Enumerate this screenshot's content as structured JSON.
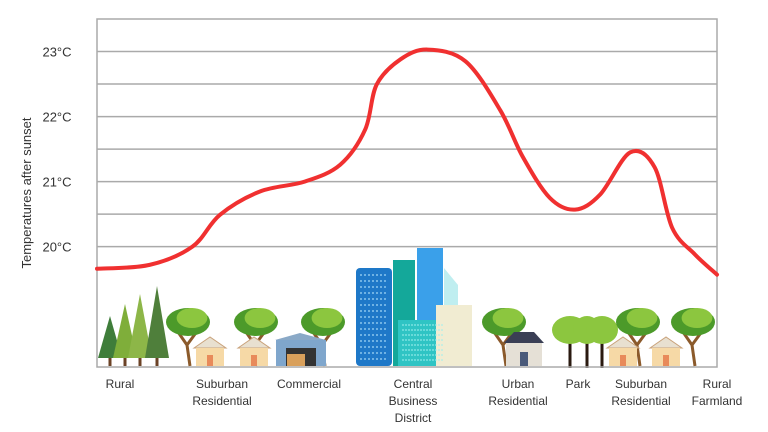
{
  "chart_data": {
    "type": "line",
    "title": "",
    "xlabel": "",
    "ylabel": "Temperatures after sunset",
    "ylim": [
      18.15,
      23.5
    ],
    "yticks": [
      {
        "value": 20,
        "label": "20°C"
      },
      {
        "value": 21,
        "label": "21°C"
      },
      {
        "value": 22,
        "label": "22°C"
      },
      {
        "value": 23,
        "label": "23°C"
      }
    ],
    "gridlines": [
      20,
      20.5,
      21,
      21.5,
      22,
      22.5,
      23
    ],
    "grid": true,
    "categories": [
      [
        "Rural"
      ],
      [
        "Suburban",
        "Residential"
      ],
      [
        "Commercial"
      ],
      [
        "Central",
        "Business",
        "District"
      ],
      [
        "Urban",
        "Residential"
      ],
      [
        "Park"
      ],
      [
        "Suburban",
        "Residential"
      ],
      [
        "Rural",
        "Farmland"
      ]
    ],
    "series": [
      {
        "color": "#f03030",
        "points": [
          {
            "x": -0.23,
            "y": 19.66
          },
          {
            "x": 0.29,
            "y": 19.72
          },
          {
            "x": 0.71,
            "y": 20.0
          },
          {
            "x": 0.98,
            "y": 20.49
          },
          {
            "x": 1.44,
            "y": 20.85
          },
          {
            "x": 1.95,
            "y": 21.0
          },
          {
            "x": 2.3,
            "y": 21.26
          },
          {
            "x": 2.54,
            "y": 21.8
          },
          {
            "x": 2.65,
            "y": 22.49
          },
          {
            "x": 2.88,
            "y": 22.88
          },
          {
            "x": 3.14,
            "y": 23.03
          },
          {
            "x": 3.5,
            "y": 22.85
          },
          {
            "x": 3.83,
            "y": 22.1
          },
          {
            "x": 4.08,
            "y": 21.38
          },
          {
            "x": 4.53,
            "y": 20.75
          },
          {
            "x": 4.95,
            "y": 20.57
          },
          {
            "x": 5.35,
            "y": 20.8
          },
          {
            "x": 5.83,
            "y": 21.45
          },
          {
            "x": 6.18,
            "y": 21.22
          },
          {
            "x": 6.41,
            "y": 20.29
          },
          {
            "x": 6.71,
            "y": 19.88
          },
          {
            "x": 7.0,
            "y": 19.57
          }
        ]
      }
    ],
    "illustrations": [
      "pine-trees",
      "trees-with-houses",
      "warehouse",
      "skyscrapers",
      "urban-house",
      "park-trees",
      "trees-with-houses",
      "trees"
    ]
  }
}
